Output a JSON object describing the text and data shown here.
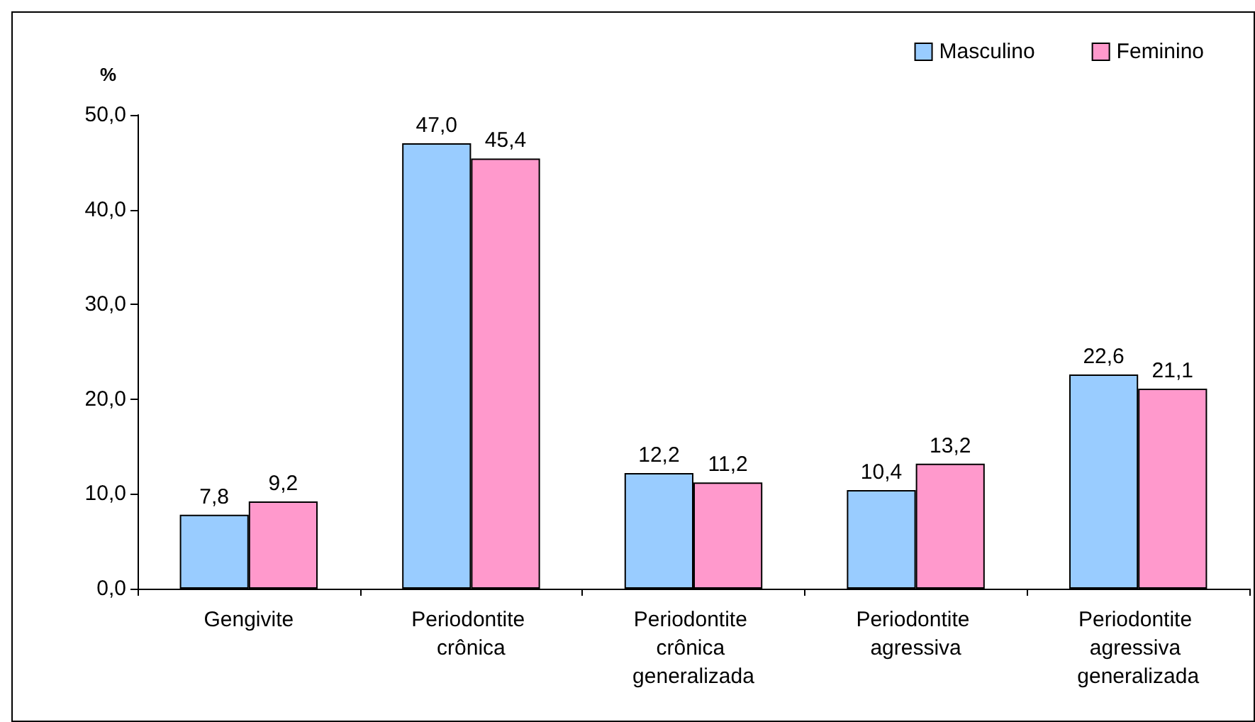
{
  "chart_data": {
    "type": "bar",
    "ylabel": "%",
    "categories": [
      "Gengivite",
      "Periodontite crônica",
      "Periodontite crônica generalizada",
      "Periodontite agressiva",
      "Periodontite agressiva generalizada"
    ],
    "series": [
      {
        "name": "Masculino",
        "color": "#99ccff",
        "values": [
          7.8,
          47.0,
          12.2,
          10.4,
          22.6
        ],
        "value_labels": [
          "7,8",
          "47,0",
          "12,2",
          "10,4",
          "22,6"
        ]
      },
      {
        "name": "Feminino",
        "color": "#ff99cc",
        "values": [
          9.2,
          45.4,
          11.2,
          13.2,
          21.1
        ],
        "value_labels": [
          "9,2",
          "45,4",
          "11,2",
          "13,2",
          "21,1"
        ]
      }
    ],
    "ylim": [
      0,
      50
    ],
    "yticks": [
      {
        "value": 0,
        "label": "0,0"
      },
      {
        "value": 10,
        "label": "10,0"
      },
      {
        "value": 20,
        "label": "20,0"
      },
      {
        "value": 30,
        "label": "30,0"
      },
      {
        "value": 40,
        "label": "40,0"
      },
      {
        "value": 50,
        "label": "50,0"
      }
    ],
    "grid": false,
    "legend": "top right"
  }
}
